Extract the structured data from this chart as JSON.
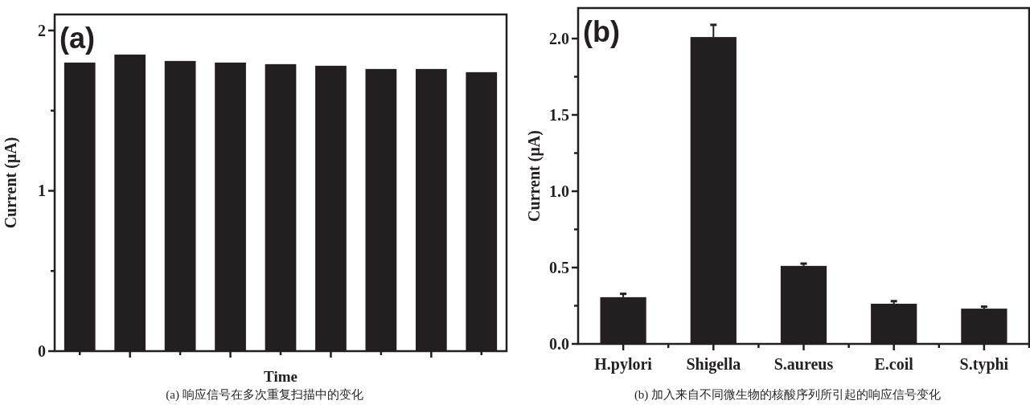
{
  "chart_data": [
    {
      "type": "bar",
      "xlabel": "Time",
      "ylabel": "Current (μA)",
      "categories": [
        null,
        null,
        null,
        null,
        null,
        null,
        null,
        null,
        null
      ],
      "values": [
        1.8,
        1.85,
        1.81,
        1.8,
        1.79,
        1.78,
        1.76,
        1.76,
        1.74
      ],
      "color": "#231f20",
      "ylim": [
        0,
        2.1
      ],
      "yticks": [
        0,
        {
          "value": 0.5,
          "label": null
        },
        1,
        {
          "value": 1.5,
          "label": null
        },
        2
      ],
      "annotations": [
        "(a)",
        "(a) 响应信号在多次重复扫描中的变化"
      ]
    },
    {
      "type": "bar",
      "ylabel": "Current (μA)",
      "categories": [
        "H.pylori",
        "Shigella",
        "S.aureus",
        "E.coil",
        "S.typhi"
      ],
      "values": [
        0.306,
        2.01,
        0.511,
        0.263,
        0.231
      ],
      "errors": [
        0.022,
        0.08,
        0.015,
        0.017,
        0.013
      ],
      "color": "#231f20",
      "ylim": [
        0,
        2.2
      ],
      "yticks": [
        {
          "value": 0,
          "label": "0.0"
        },
        {
          "value": 0.25,
          "label": null
        },
        {
          "value": 0.5,
          "label": "0.5"
        },
        {
          "value": 0.75,
          "label": null
        },
        {
          "value": 1,
          "label": "1.0"
        },
        {
          "value": 1.25,
          "label": null
        },
        {
          "value": 1.5,
          "label": "1.5"
        },
        {
          "value": 1.75,
          "label": null
        },
        {
          "value": 2,
          "label": "2.0"
        }
      ],
      "annotations": [
        "(b)",
        "(b) 加入来自不同微生物的核酸序列所引起的响应信号变化"
      ]
    }
  ]
}
